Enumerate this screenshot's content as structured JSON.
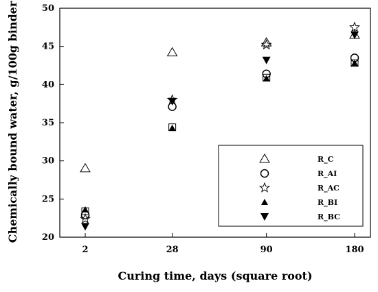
{
  "chart_data": {
    "type": "scatter",
    "xlabel": "Curing time, days (square root)",
    "ylabel": "Chemically bound water, g/100g binder",
    "x_scale": "sqrt",
    "x_ticks": [
      2,
      28,
      90,
      180
    ],
    "x_tick_labels": [
      "2",
      "28",
      "90",
      "180"
    ],
    "ylim": [
      20,
      50
    ],
    "y_ticks": [
      20,
      25,
      30,
      35,
      40,
      45,
      50
    ],
    "grid": false,
    "legend_position": "bottom-right",
    "series": [
      {
        "name": "R_C",
        "marker": "open-triangle",
        "x": [
          2,
          28,
          90,
          180
        ],
        "values": [
          29.0,
          44.2,
          45.5,
          46.5
        ]
      },
      {
        "name": "R_AI",
        "marker": "open-circle",
        "x": [
          2,
          28,
          90,
          180
        ],
        "values": [
          22.9,
          37.1,
          41.4,
          43.5
        ]
      },
      {
        "name": "R_AC",
        "marker": "open-star",
        "x": [
          2,
          28,
          90,
          180
        ],
        "values": [
          22.4,
          38.0,
          45.2,
          47.5
        ]
      },
      {
        "name": "R_BI",
        "marker": "filled-triangle",
        "x": [
          2,
          28,
          90,
          180
        ],
        "values": [
          23.6,
          34.3,
          40.8,
          42.8
        ]
      },
      {
        "name": "R_BC",
        "marker": "filled-triangle-down",
        "x": [
          2,
          28,
          90,
          180
        ],
        "values": [
          21.4,
          37.8,
          43.2,
          46.5
        ]
      }
    ],
    "extra_markers": [
      {
        "marker": "open-square",
        "x": 2,
        "value": 23.4
      },
      {
        "marker": "open-square",
        "x": 28,
        "value": 34.4
      },
      {
        "marker": "open-square",
        "x": 90,
        "value": 40.9
      },
      {
        "marker": "open-square",
        "x": 180,
        "value": 42.8
      }
    ]
  }
}
